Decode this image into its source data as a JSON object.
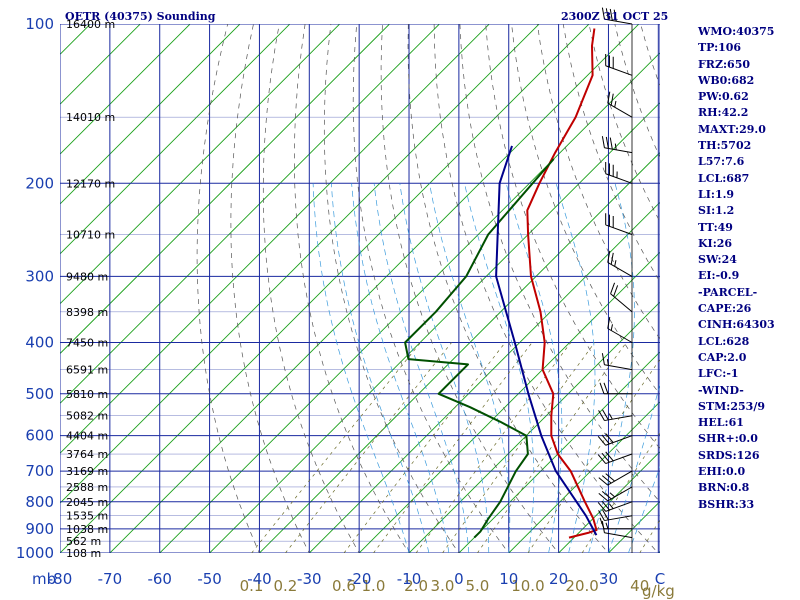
{
  "header": {
    "station": "OETR (40375) Sounding",
    "time": "2300Z 31 OCT 25"
  },
  "indices": [
    "WMO:40375",
    "TP:106",
    "FRZ:650",
    "WB0:682",
    "PW:0.62",
    "RH:42.2",
    "MAXT:29.0",
    "TH:5702",
    "L57:7.6",
    "LCL:687",
    "LI:1.9",
    "SI:1.2",
    "TT:49",
    "KI:26",
    "SW:24",
    "EI:-0.9",
    "-PARCEL-",
    "CAPE:26",
    "CINH:64303",
    "LCL:628",
    "CAP:2.0",
    "LFC:-1",
    "-WIND-",
    "STM:253/9",
    "HEL:61",
    "SHR+:0.0",
    "SRDS:126",
    "EHI:0.0",
    "BRN:0.8",
    "BSHR:33"
  ],
  "chart_data": {
    "type": "line",
    "title": "OETR (40375) Sounding",
    "subtitle": "2300Z 31 OCT 25",
    "yscale": "log-pressure",
    "ylim": [
      1000,
      100
    ],
    "xlim": [
      -80,
      40
    ],
    "y_axis_label": "mb",
    "x_axis_label_right": "C",
    "mixing_axis_label": "g/kg",
    "pressure_ticks": [
      {
        "p": 100,
        "label": "100"
      },
      {
        "p": 200,
        "label": "200"
      },
      {
        "p": 300,
        "label": "300"
      },
      {
        "p": 400,
        "label": "400"
      },
      {
        "p": 500,
        "label": "500"
      },
      {
        "p": 600,
        "label": "600"
      },
      {
        "p": 700,
        "label": "700"
      },
      {
        "p": 800,
        "label": "800"
      },
      {
        "p": 900,
        "label": "900"
      },
      {
        "p": 1000,
        "label": "1000"
      }
    ],
    "temp_ticks": [
      "-80",
      "-70",
      "-60",
      "-50",
      "-40",
      "-30",
      "-20",
      "-10",
      "0",
      "10",
      "20",
      "30"
    ],
    "mixing_ratio_labels": [
      {
        "w": 0.1,
        "label": "0.1"
      },
      {
        "w": 0.2,
        "label": "0.2"
      },
      {
        "w": 0.6,
        "label": "0.6"
      },
      {
        "w": 1.0,
        "label": "1.0"
      },
      {
        "w": 2.0,
        "label": "2.0"
      },
      {
        "w": 3.0,
        "label": "3.0"
      },
      {
        "w": 5.0,
        "label": "5.0"
      },
      {
        "w": 10.0,
        "label": "10.0"
      },
      {
        "w": 20.0,
        "label": "20.0"
      },
      {
        "w": 40.0,
        "label": "40"
      }
    ],
    "height_labels": [
      {
        "p": 100,
        "label": "16400 m"
      },
      {
        "p": 150,
        "label": "14010 m"
      },
      {
        "p": 200,
        "label": "12170 m"
      },
      {
        "p": 250,
        "label": "10710 m"
      },
      {
        "p": 300,
        "label": "9480 m"
      },
      {
        "p": 350,
        "label": "8398 m"
      },
      {
        "p": 400,
        "label": "7450 m"
      },
      {
        "p": 450,
        "label": "6591 m"
      },
      {
        "p": 500,
        "label": "5810 m"
      },
      {
        "p": 550,
        "label": "5082 m"
      },
      {
        "p": 600,
        "label": "4404 m"
      },
      {
        "p": 650,
        "label": "3764 m"
      },
      {
        "p": 700,
        "label": "3169 m"
      },
      {
        "p": 750,
        "label": "2588 m"
      },
      {
        "p": 800,
        "label": "2045 m"
      },
      {
        "p": 850,
        "label": "1535 m"
      },
      {
        "p": 900,
        "label": "1038 m"
      },
      {
        "p": 950,
        "label": "562 m"
      },
      {
        "p": 1000,
        "label": "108 m"
      }
    ],
    "series": [
      {
        "key": "temperature",
        "color": "#c00000",
        "points": [
          [
            935,
            19
          ],
          [
            915,
            22
          ],
          [
            905,
            23
          ],
          [
            860,
            20
          ],
          [
            800,
            15
          ],
          [
            700,
            6
          ],
          [
            650,
            0
          ],
          [
            600,
            -5
          ],
          [
            550,
            -9
          ],
          [
            500,
            -13
          ],
          [
            450,
            -20
          ],
          [
            400,
            -25
          ],
          [
            350,
            -32
          ],
          [
            300,
            -41
          ],
          [
            250,
            -50
          ],
          [
            225,
            -55
          ],
          [
            200,
            -58
          ],
          [
            175,
            -61
          ],
          [
            150,
            -64
          ],
          [
            125,
            -69
          ],
          [
            110,
            -75
          ],
          [
            102,
            -78
          ]
        ]
      },
      {
        "key": "dewpoint",
        "color": "#005000",
        "points": [
          [
            935,
            0
          ],
          [
            910,
            0
          ],
          [
            860,
            -1
          ],
          [
            800,
            -2
          ],
          [
            700,
            -5
          ],
          [
            650,
            -6
          ],
          [
            600,
            -10
          ],
          [
            565,
            -18
          ],
          [
            530,
            -27
          ],
          [
            500,
            -36
          ],
          [
            440,
            -36
          ],
          [
            430,
            -49
          ],
          [
            400,
            -53
          ],
          [
            350,
            -53
          ],
          [
            300,
            -54
          ],
          [
            250,
            -58
          ],
          [
            180,
            -60
          ]
        ]
      },
      {
        "key": "parcel",
        "color": "#00008b",
        "points": [
          [
            925,
            24
          ],
          [
            850,
            18
          ],
          [
            700,
            3
          ],
          [
            600,
            -7
          ],
          [
            500,
            -18
          ],
          [
            400,
            -31
          ],
          [
            300,
            -48
          ],
          [
            200,
            -66
          ],
          [
            170,
            -71
          ]
        ]
      }
    ],
    "winds": [
      {
        "p": 935,
        "dir": 280,
        "spd": 10
      },
      {
        "p": 900,
        "dir": 270,
        "spd": 15
      },
      {
        "p": 850,
        "dir": 260,
        "spd": 20
      },
      {
        "p": 800,
        "dir": 250,
        "spd": 25
      },
      {
        "p": 750,
        "dir": 240,
        "spd": 25
      },
      {
        "p": 700,
        "dir": 240,
        "spd": 30
      },
      {
        "p": 650,
        "dir": 250,
        "spd": 30
      },
      {
        "p": 600,
        "dir": 250,
        "spd": 30
      },
      {
        "p": 550,
        "dir": 260,
        "spd": 25
      },
      {
        "p": 500,
        "dir": 270,
        "spd": 20
      },
      {
        "p": 450,
        "dir": 280,
        "spd": 15
      },
      {
        "p": 400,
        "dir": 300,
        "spd": 15
      },
      {
        "p": 350,
        "dir": 310,
        "spd": 20
      },
      {
        "p": 300,
        "dir": 300,
        "spd": 25
      },
      {
        "p": 250,
        "dir": 290,
        "spd": 30
      },
      {
        "p": 200,
        "dir": 290,
        "spd": 35
      },
      {
        "p": 175,
        "dir": 280,
        "spd": 35
      },
      {
        "p": 150,
        "dir": 300,
        "spd": 25
      },
      {
        "p": 125,
        "dir": 290,
        "spd": 30
      },
      {
        "p": 100,
        "dir": 280,
        "spd": 40
      }
    ],
    "grid": true
  }
}
